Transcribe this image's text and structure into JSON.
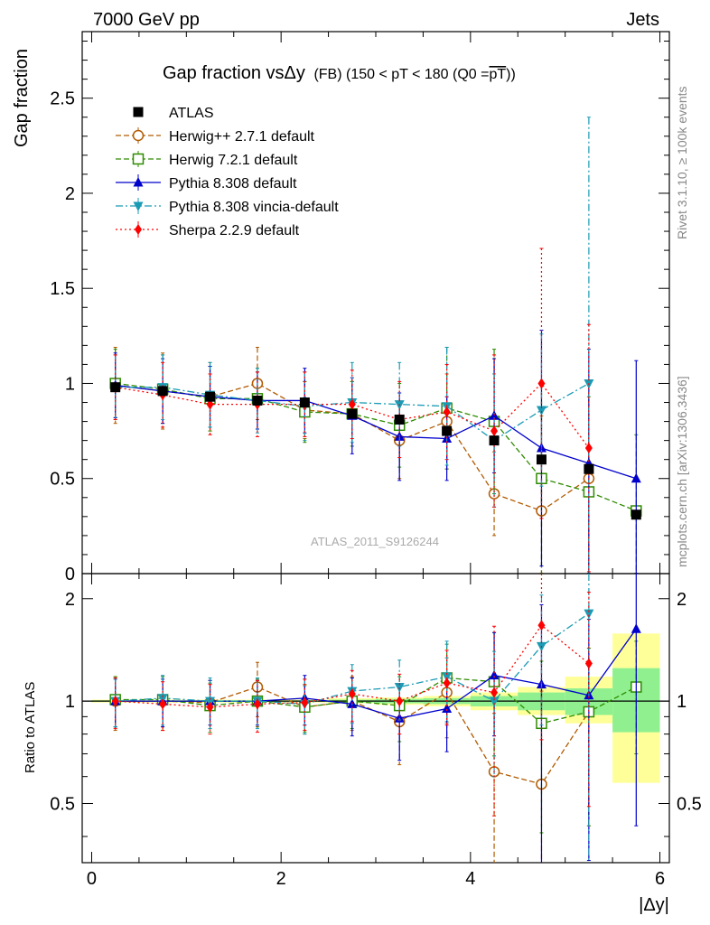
{
  "header": {
    "energy": "7000 GeV pp",
    "process": "Jets",
    "rivet": "Rivet 3.1.10, ≥ 100k events",
    "source": "mcplots.cern.ch [arXiv:1306.3436]",
    "analysis": "ATLAS_2011_S9126244"
  },
  "chart_data": [
    {
      "type": "line",
      "title": "Gap fraction vsΔy (FB) (150 < pT < 180 (Q0 =pT))",
      "title_main": "Gap fraction vsΔy",
      "title_sub": "(FB) (150 < pT < 180 (Q0 =",
      "title_overline": "pT",
      "title_end": "))",
      "ylabel": "Gap fraction",
      "xlabel": "|Δy|",
      "xlim": [
        -0.1,
        6.1
      ],
      "ylim": [
        0,
        2.85
      ],
      "yticks": [
        0,
        0.5,
        1,
        1.5,
        2,
        2.5
      ],
      "ytick_labels": [
        "0",
        "0.5",
        "1",
        "1.5",
        "2",
        "2.5"
      ],
      "x": [
        0.25,
        0.75,
        1.25,
        1.75,
        2.25,
        2.75,
        3.25,
        3.75,
        4.25,
        4.75,
        5.25,
        5.75
      ],
      "legend_position": "top-left",
      "series": [
        {
          "name": "ATLAS",
          "color": "#000000",
          "marker": "square-filled",
          "line": "none",
          "values": [
            0.98,
            0.96,
            0.93,
            0.91,
            0.9,
            0.84,
            0.81,
            0.75,
            0.7,
            0.6,
            0.55,
            0.31
          ],
          "err": [
            0,
            0,
            0,
            0,
            0,
            0,
            0,
            0,
            0,
            0,
            0,
            0
          ]
        },
        {
          "name": "Herwig++ 2.7.1 default",
          "color": "#b15a00",
          "marker": "circle-open",
          "line": "dashed",
          "values": [
            0.99,
            0.96,
            0.93,
            1.0,
            0.86,
            0.84,
            0.7,
            0.8,
            0.42,
            0.33,
            0.5,
            null
          ],
          "err": [
            0.2,
            0.2,
            0.18,
            0.19,
            0.15,
            0.17,
            0.2,
            0.25,
            0.22,
            0.5,
            0.5,
            0
          ]
        },
        {
          "name": "Herwig 7.2.1 default",
          "color": "#2e8b00",
          "marker": "square-open",
          "line": "dashed",
          "values": [
            1.0,
            0.97,
            0.92,
            0.92,
            0.85,
            0.84,
            0.78,
            0.87,
            0.8,
            0.5,
            0.43,
            0.33
          ],
          "err": [
            0.18,
            0.18,
            0.17,
            0.16,
            0.16,
            0.17,
            0.22,
            0.32,
            0.38,
            0.5,
            0.5,
            0.4
          ]
        },
        {
          "name": "Pythia 8.308 default",
          "color": "#0000cc",
          "marker": "triangle-up",
          "line": "solid",
          "values": [
            0.99,
            0.96,
            0.93,
            0.91,
            0.91,
            0.83,
            0.72,
            0.71,
            0.83,
            0.66,
            0.58,
            0.5
          ],
          "err": [
            0.17,
            0.17,
            0.16,
            0.15,
            0.17,
            0.2,
            0.23,
            0.22,
            0.3,
            0.62,
            0.6,
            0.62
          ]
        },
        {
          "name": "Pythia 8.308 vincia-default",
          "color": "#1a9bb5",
          "marker": "triangle-down",
          "line": "dashdot",
          "values": [
            0.98,
            0.98,
            0.94,
            0.91,
            0.88,
            0.9,
            0.89,
            0.88,
            0.7,
            0.86,
            1.0,
            null
          ],
          "err": [
            0.17,
            0.17,
            0.17,
            0.17,
            0.18,
            0.21,
            0.22,
            0.31,
            0.35,
            0.4,
            1.4,
            0
          ]
        },
        {
          "name": "Sherpa 2.2.9 default",
          "color": "#ff0000",
          "marker": "diamond-filled",
          "line": "dotted",
          "values": [
            0.98,
            0.94,
            0.89,
            0.89,
            0.89,
            0.89,
            0.81,
            0.85,
            0.75,
            1.0,
            0.66,
            null
          ],
          "err": [
            0.17,
            0.17,
            0.16,
            0.17,
            0.17,
            0.18,
            0.2,
            0.25,
            0.4,
            0.71,
            0.65,
            0
          ]
        }
      ]
    },
    {
      "type": "line",
      "title": "",
      "ylabel": "Ratio to ATLAS",
      "xlabel": "|Δy|",
      "xlim": [
        -0.1,
        6.1
      ],
      "ylim": [
        0.335,
        2.37
      ],
      "scale": "log",
      "yticks": [
        0.5,
        1,
        2
      ],
      "ytick_labels": [
        "0.5",
        "1",
        "2"
      ],
      "xticks": [
        0,
        2,
        4,
        6
      ],
      "xtick_labels": [
        "0",
        "2",
        "4",
        "6"
      ],
      "reference_line": 1,
      "x": [
        0.25,
        0.75,
        1.25,
        1.75,
        2.25,
        2.75,
        3.25,
        3.75,
        4.25,
        4.75,
        5.25,
        5.75
      ],
      "bands": {
        "inner_color": "#90f090",
        "outer_color": "#ffff99",
        "inner": [
          [
            0.995,
            1.005
          ],
          [
            0.995,
            1.005
          ],
          [
            0.995,
            1.005
          ],
          [
            0.995,
            1.005
          ],
          [
            0.995,
            1.005
          ],
          [
            0.99,
            1.01
          ],
          [
            0.985,
            1.015
          ],
          [
            0.98,
            1.02
          ],
          [
            0.965,
            1.035
          ],
          [
            0.94,
            1.06
          ],
          [
            0.91,
            1.09
          ],
          [
            0.81,
            1.25
          ]
        ],
        "outer": [
          [
            0.99,
            1.01
          ],
          [
            0.99,
            1.01
          ],
          [
            0.99,
            1.01
          ],
          [
            0.99,
            1.01
          ],
          [
            0.99,
            1.01
          ],
          [
            0.985,
            1.02
          ],
          [
            0.975,
            1.025
          ],
          [
            0.965,
            1.035
          ],
          [
            0.94,
            1.06
          ],
          [
            0.91,
            1.1
          ],
          [
            0.86,
            1.18
          ],
          [
            0.575,
            1.58
          ]
        ]
      },
      "series": [
        {
          "name": "Herwig++ 2.7.1 default",
          "values": [
            1.0,
            1.0,
            0.99,
            1.1,
            0.96,
            1.0,
            0.87,
            1.06,
            0.62,
            0.57,
            0.93,
            null
          ],
          "err": [
            0.18,
            0.18,
            0.16,
            0.2,
            0.16,
            0.18,
            0.22,
            0.28,
            0.3,
            0.5,
            0.5,
            0
          ]
        },
        {
          "name": "Herwig 7.2.1 default",
          "values": [
            1.01,
            1.01,
            0.97,
            1.0,
            0.96,
            1.0,
            0.97,
            1.17,
            1.14,
            0.86,
            0.93,
            1.1
          ],
          "err": [
            0.17,
            0.17,
            0.16,
            0.16,
            0.15,
            0.17,
            0.21,
            0.3,
            0.45,
            0.45,
            0.5,
            0.4
          ]
        },
        {
          "name": "Pythia 8.308 default",
          "values": [
            1.0,
            1.0,
            1.0,
            1.0,
            1.02,
            0.98,
            0.89,
            0.95,
            1.19,
            1.12,
            1.04,
            1.63
          ],
          "err": [
            0.16,
            0.16,
            0.15,
            0.15,
            0.17,
            0.19,
            0.22,
            0.24,
            0.4,
            0.8,
            0.7,
            1.2
          ]
        },
        {
          "name": "Pythia 8.308 vincia-default",
          "values": [
            1.0,
            1.02,
            1.0,
            1.0,
            0.98,
            1.07,
            1.1,
            1.18,
            1.0,
            1.45,
            1.81,
            null
          ],
          "err": [
            0.16,
            0.17,
            0.17,
            0.17,
            0.18,
            0.21,
            0.22,
            0.32,
            0.4,
            0.6,
            1.5,
            0
          ]
        },
        {
          "name": "Sherpa 2.2.9 default",
          "values": [
            1.0,
            0.98,
            0.96,
            0.98,
            0.99,
            1.05,
            1.0,
            1.13,
            1.06,
            1.67,
            1.29,
            null
          ],
          "err": [
            0.17,
            0.16,
            0.16,
            0.17,
            0.17,
            0.18,
            0.2,
            0.28,
            0.6,
            0.9,
            0.8,
            0
          ]
        }
      ]
    }
  ]
}
